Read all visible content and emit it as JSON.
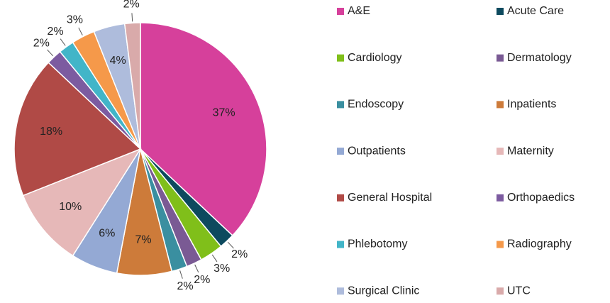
{
  "chart_data": {
    "type": "pie",
    "categories": [
      "A&E",
      "Acute Care",
      "Cardiology",
      "Dermatology",
      "Endoscopy",
      "Inpatients",
      "Outpatients",
      "Maternity",
      "General Hospital",
      "Orthopaedics",
      "Phlebotomy",
      "Radiography",
      "Surgical Clinic",
      "UTC"
    ],
    "values": [
      37,
      2,
      3,
      2,
      2,
      7,
      6,
      10,
      18,
      2,
      2,
      3,
      4,
      2
    ],
    "value_labels": [
      "37%",
      "2%",
      "3%",
      "2%",
      "2%",
      "7%",
      "6%",
      "10%",
      "18%",
      "2%",
      "2%",
      "3%",
      "4%",
      "2%"
    ],
    "colors": [
      "#d6409b",
      "#0d4a5e",
      "#80bf1a",
      "#7a5a94",
      "#3a8fa0",
      "#cd7b3a",
      "#94a9d4",
      "#e6b8b8",
      "#b04a46",
      "#7c5ba0",
      "#42b5c8",
      "#f5994a",
      "#aebcdc",
      "#d9aaaa"
    ],
    "legend": "right"
  }
}
